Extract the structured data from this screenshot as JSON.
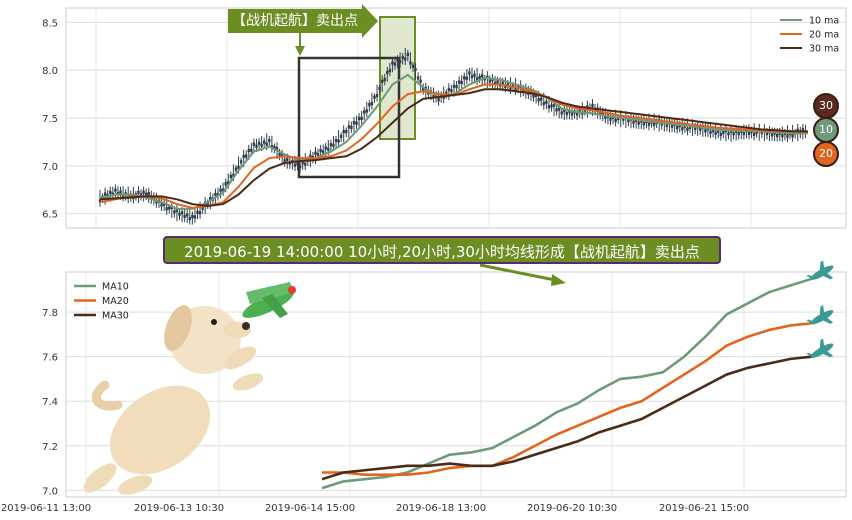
{
  "callouts": {
    "top": "【战机起航】卖出点",
    "banner": "2019-06-19 14:00:00 10小时,20小时,30小时均线形成【战机起航】卖出点"
  },
  "badges": [
    {
      "label": "30",
      "color": "#5a2a1a"
    },
    {
      "label": "10",
      "color": "#6f9a7a"
    },
    {
      "label": "20",
      "color": "#e2651f"
    }
  ],
  "colors": {
    "ma10": "#6f9a7a",
    "ma20": "#e2651f",
    "ma30": "#4b2a16",
    "candle": "#2f3f4f",
    "highlight_fill": "#dfe8cf",
    "highlight_stroke": "#6b8e23",
    "rect_stroke": "#333333",
    "callout_bg": "#6b8e23"
  },
  "chart_data": [
    {
      "type": "line",
      "subtype": "candlestick_with_ma",
      "title": "",
      "xlabel": "",
      "ylabel": "",
      "ylim": [
        6.35,
        8.65
      ],
      "y_ticks": [
        6.5,
        7.0,
        7.5,
        8.0,
        8.5
      ],
      "grid": true,
      "legend_position": "top-right",
      "legend": [
        "10 ma",
        "20 ma",
        "30 ma"
      ],
      "series": [
        {
          "name": "10 ma",
          "values": [
            6.66,
            6.7,
            6.7,
            6.67,
            6.62,
            6.55,
            6.55,
            6.62,
            6.72,
            6.95,
            7.15,
            7.2,
            7.12,
            7.05,
            7.08,
            7.15,
            7.25,
            7.42,
            7.62,
            7.85,
            7.95,
            7.82,
            7.72,
            7.75,
            7.85,
            7.92,
            7.9,
            7.85,
            7.8,
            7.72,
            7.6,
            7.56,
            7.55,
            7.52,
            7.5,
            7.48,
            7.46,
            7.44,
            7.42,
            7.4,
            7.38,
            7.37,
            7.37,
            7.36,
            7.35,
            7.34,
            7.34
          ]
        },
        {
          "name": "20 ma",
          "values": [
            6.62,
            6.65,
            6.68,
            6.68,
            6.66,
            6.6,
            6.56,
            6.58,
            6.62,
            6.78,
            6.98,
            7.08,
            7.1,
            7.08,
            7.08,
            7.1,
            7.16,
            7.28,
            7.44,
            7.62,
            7.75,
            7.78,
            7.75,
            7.74,
            7.8,
            7.85,
            7.85,
            7.82,
            7.78,
            7.72,
            7.64,
            7.6,
            7.58,
            7.55,
            7.52,
            7.5,
            7.48,
            7.46,
            7.44,
            7.42,
            7.4,
            7.39,
            7.38,
            7.37,
            7.36,
            7.36,
            7.35
          ]
        },
        {
          "name": "30 ma",
          "values": [
            6.65,
            6.66,
            6.67,
            6.68,
            6.68,
            6.65,
            6.6,
            6.58,
            6.6,
            6.7,
            6.85,
            6.97,
            7.03,
            7.05,
            7.06,
            7.08,
            7.1,
            7.18,
            7.3,
            7.45,
            7.6,
            7.7,
            7.72,
            7.74,
            7.76,
            7.8,
            7.8,
            7.78,
            7.76,
            7.72,
            7.66,
            7.62,
            7.6,
            7.58,
            7.56,
            7.54,
            7.52,
            7.5,
            7.48,
            7.46,
            7.44,
            7.42,
            7.4,
            7.38,
            7.37,
            7.36,
            7.36
          ]
        }
      ],
      "candles": [
        6.65,
        6.72,
        6.68,
        6.7,
        6.6,
        6.5,
        6.45,
        6.6,
        6.75,
        7.0,
        7.2,
        7.25,
        7.05,
        7.0,
        7.1,
        7.2,
        7.35,
        7.5,
        7.75,
        8.05,
        8.15,
        7.8,
        7.7,
        7.8,
        7.95,
        7.9,
        7.85,
        7.82,
        7.75,
        7.65,
        7.55,
        7.55,
        7.6,
        7.5,
        7.48,
        7.45,
        7.45,
        7.42,
        7.4,
        7.38,
        7.35,
        7.33,
        7.35,
        7.34,
        7.32,
        7.33,
        7.36
      ]
    },
    {
      "type": "line",
      "title": "",
      "xlabel": "",
      "ylabel": "",
      "ylim": [
        6.97,
        7.98
      ],
      "y_ticks": [
        7.0,
        7.2,
        7.4,
        7.6,
        7.8
      ],
      "x_ticks": [
        "2019-06-11 13:00",
        "2019-06-13 10:30",
        "2019-06-14 15:00",
        "2019-06-18 13:00",
        "2019-06-20 10:30",
        "2019-06-21 15:00"
      ],
      "grid": true,
      "legend_position": "top-left",
      "series": [
        {
          "name": "MA10",
          "values": [
            7.01,
            7.04,
            7.05,
            7.06,
            7.08,
            7.12,
            7.16,
            7.17,
            7.19,
            7.24,
            7.29,
            7.35,
            7.39,
            7.45,
            7.5,
            7.51,
            7.53,
            7.6,
            7.69,
            7.79,
            7.84,
            7.89,
            7.92,
            7.95
          ]
        },
        {
          "name": "MA20",
          "values": [
            7.08,
            7.08,
            7.07,
            7.07,
            7.07,
            7.08,
            7.1,
            7.11,
            7.11,
            7.15,
            7.2,
            7.25,
            7.29,
            7.33,
            7.37,
            7.4,
            7.46,
            7.52,
            7.58,
            7.65,
            7.69,
            7.72,
            7.74,
            7.75
          ]
        },
        {
          "name": "MA30",
          "values": [
            7.05,
            7.08,
            7.09,
            7.1,
            7.11,
            7.11,
            7.12,
            7.11,
            7.11,
            7.13,
            7.16,
            7.19,
            7.22,
            7.26,
            7.29,
            7.32,
            7.37,
            7.42,
            7.47,
            7.52,
            7.55,
            7.57,
            7.59,
            7.6
          ]
        }
      ]
    }
  ]
}
